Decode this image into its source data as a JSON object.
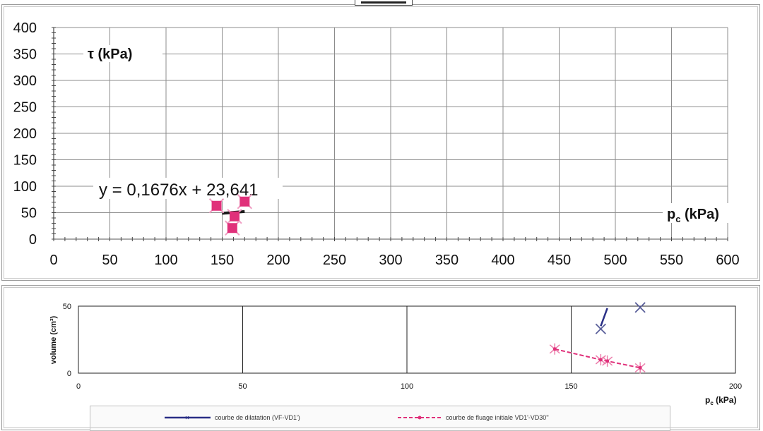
{
  "top_chart_tab": "",
  "chart_data": [
    {
      "type": "scatter",
      "title": "",
      "ylabel": "τ (kPa)",
      "xlabel": "pc (kPa)",
      "xlim": [
        0,
        600
      ],
      "ylim": [
        0,
        400
      ],
      "x_ticks": [
        "0",
        "50",
        "100",
        "150",
        "200",
        "250",
        "300",
        "350",
        "400",
        "450",
        "500",
        "550",
        "600"
      ],
      "y_ticks": [
        "0",
        "50",
        "100",
        "150",
        "200",
        "250",
        "300",
        "350",
        "400"
      ],
      "grid": true,
      "series": [
        {
          "marker": "square-star",
          "color": "#e0307a",
          "points": [
            [
              145,
              63
            ],
            [
              161,
              43
            ],
            [
              170,
              71
            ],
            [
              159,
              21
            ]
          ]
        }
      ],
      "trendline": {
        "equation": "y = 0,1676x + 23,641",
        "x_range": [
          145,
          170
        ],
        "slope": 0.1676,
        "intercept": 23.641,
        "color": "#1a1a1a"
      }
    },
    {
      "type": "line",
      "ylabel": "volume (cm³)",
      "xlabel": "pc (kPa)",
      "xlim": [
        0,
        200
      ],
      "ylim": [
        0,
        50
      ],
      "x_ticks": [
        "0",
        "50",
        "100",
        "150",
        "200"
      ],
      "y_ticks": [
        "0",
        "50"
      ],
      "grid": true,
      "legend_position": "bottom",
      "series": [
        {
          "name": "courbe de dilatation (VF-VD1')",
          "color": "#2a2f86",
          "style": "solid",
          "marker": "x",
          "points": [
            [
              159,
              33
            ],
            [
              171,
              49
            ]
          ]
        },
        {
          "name": "courbe de fluage initiale VD1'-VD30''",
          "color": "#e0307a",
          "style": "dashed",
          "marker": "star",
          "points": [
            [
              145,
              18
            ],
            [
              159,
              10
            ],
            [
              161,
              9
            ],
            [
              171,
              4
            ]
          ]
        }
      ]
    }
  ]
}
